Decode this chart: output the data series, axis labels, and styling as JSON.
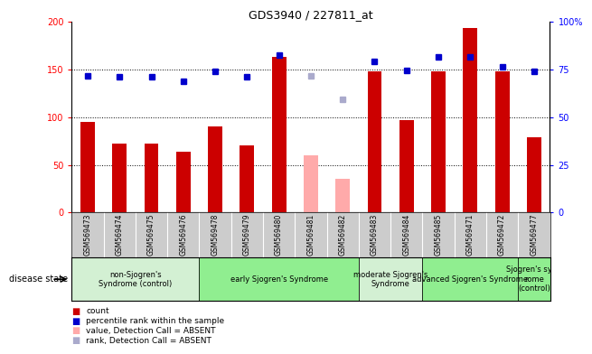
{
  "title": "GDS3940 / 227811_at",
  "samples": [
    "GSM569473",
    "GSM569474",
    "GSM569475",
    "GSM569476",
    "GSM569478",
    "GSM569479",
    "GSM569480",
    "GSM569481",
    "GSM569482",
    "GSM569483",
    "GSM569484",
    "GSM569485",
    "GSM569471",
    "GSM569472",
    "GSM569477"
  ],
  "count_values": [
    95,
    72,
    72,
    64,
    90,
    70,
    163,
    null,
    null,
    148,
    97,
    148,
    193,
    148,
    79
  ],
  "rank_values": [
    143,
    142,
    142,
    138,
    148,
    142,
    165,
    null,
    null,
    158,
    149,
    163,
    163,
    153,
    148
  ],
  "absent_count_values": [
    null,
    null,
    null,
    null,
    null,
    null,
    null,
    60,
    35,
    null,
    null,
    null,
    null,
    null,
    null
  ],
  "absent_rank_values": [
    null,
    null,
    null,
    null,
    null,
    null,
    null,
    143,
    119,
    null,
    null,
    null,
    null,
    null,
    null
  ],
  "groups": [
    {
      "label": "non-Sjogren's\nSyndrome (control)",
      "start": 0,
      "end": 4,
      "color": "#d3f0d3"
    },
    {
      "label": "early Sjogren's Syndrome",
      "start": 4,
      "end": 9,
      "color": "#90ee90"
    },
    {
      "label": "moderate Sjogren's\nSyndrome",
      "start": 9,
      "end": 11,
      "color": "#d3f0d3"
    },
    {
      "label": "advanced Sjogren's Syndrome",
      "start": 11,
      "end": 14,
      "color": "#90ee90"
    },
    {
      "label": "Sjogren's synd\nrome\n(control)",
      "start": 14,
      "end": 15,
      "color": "#90ee90"
    }
  ],
  "ylim_left": [
    0,
    200
  ],
  "yticks_left": [
    0,
    50,
    100,
    150,
    200
  ],
  "right_yticks_val": [
    0,
    50,
    100,
    150,
    200
  ],
  "right_yticks_label": [
    "0",
    "25",
    "50",
    "75",
    "100%"
  ],
  "bar_color": "#cc0000",
  "absent_bar_color": "#ffaaaa",
  "rank_color": "#0000cc",
  "absent_rank_color": "#aaaacc",
  "disease_state_label": "disease state"
}
